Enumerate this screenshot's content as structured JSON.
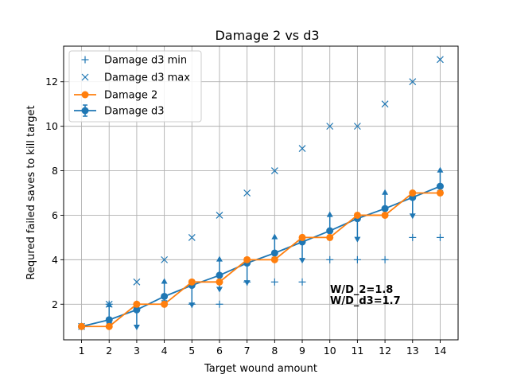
{
  "chart_data": {
    "type": "line",
    "title": "Damage 2 vs d3",
    "xlabel": "Target wound amount",
    "ylabel": "Requred failed saves to kill target",
    "xlim": [
      0.35,
      14.65
    ],
    "ylim": [
      0.4,
      13.6
    ],
    "x_ticks": [
      1,
      2,
      3,
      4,
      5,
      6,
      7,
      8,
      9,
      10,
      11,
      12,
      13,
      14
    ],
    "y_ticks": [
      2,
      4,
      6,
      8,
      10,
      12
    ],
    "grid": true,
    "legend_position": "top-left",
    "x": [
      1,
      2,
      3,
      4,
      5,
      6,
      7,
      8,
      9,
      10,
      11,
      12,
      13,
      14
    ],
    "series": [
      {
        "name": "Damage d3 min",
        "marker": "+",
        "color": "#1f77b4",
        "values": [
          1,
          2,
          2,
          2,
          2,
          2,
          3,
          3,
          3,
          4,
          4,
          4,
          5,
          5
        ]
      },
      {
        "name": "Damage d3 max",
        "marker": "x",
        "color": "#1f77b4",
        "values": [
          1,
          2,
          3,
          4,
          5,
          6,
          7,
          8,
          9,
          10,
          10,
          11,
          12,
          13
        ]
      },
      {
        "name": "Damage 2",
        "marker": "o",
        "color": "#ff7f0e",
        "values": [
          1,
          1,
          2,
          2,
          3,
          3,
          4,
          4,
          5,
          5,
          6,
          6,
          7,
          7
        ]
      },
      {
        "name": "Damage d3",
        "marker": "o",
        "color": "#1f77b4",
        "errorbars": true,
        "values": [
          1,
          1.3,
          1.75,
          2.35,
          2.85,
          3.3,
          3.85,
          4.3,
          4.8,
          5.3,
          5.85,
          6.3,
          6.8,
          7.3
        ],
        "err_low": [
          1,
          1,
          0.9,
          2,
          1.9,
          2.6,
          2.9,
          3.95,
          3.9,
          4.9,
          4.85,
          5.9,
          5.9,
          6.95
        ],
        "err_high": [
          1,
          2.05,
          2,
          3.1,
          3,
          4.1,
          3.95,
          5.1,
          5.05,
          6.1,
          6.05,
          7.1,
          7.05,
          8.1
        ]
      }
    ],
    "annotations": [
      "W/D_2=1.8",
      "W/D_d3=1.7"
    ]
  }
}
